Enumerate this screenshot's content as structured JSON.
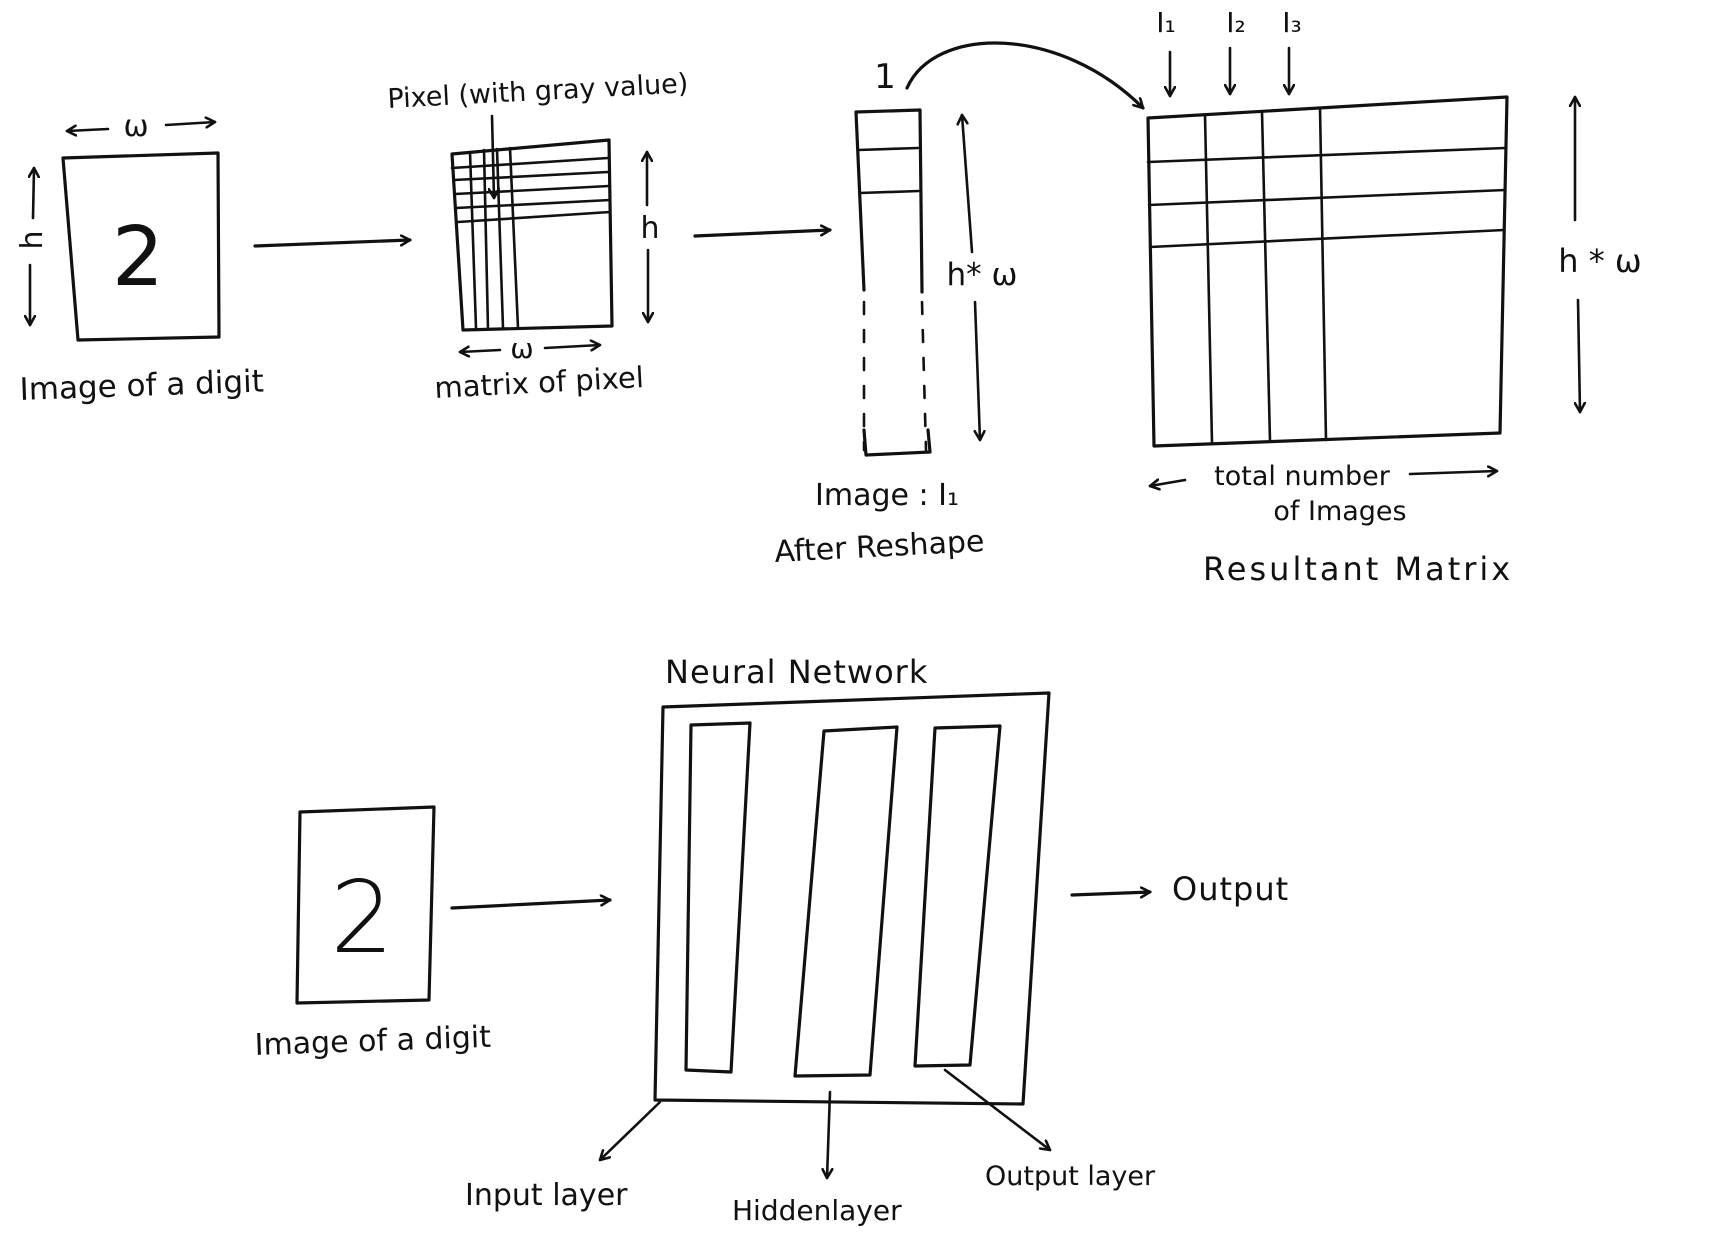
{
  "top": {
    "digit_image": {
      "digit": "2",
      "width_label": "ω",
      "height_label": "h",
      "caption": "Image of a digit"
    },
    "pixel_matrix": {
      "annotation": "Pixel (with gray value)",
      "width_label": "ω",
      "height_label": "h",
      "caption": "matrix of pixel"
    },
    "reshaped": {
      "index_label": "1",
      "size_label": "h* ω",
      "caption_line1": "Image : I₁",
      "caption_line2": "After Reshape"
    },
    "resultant": {
      "column_labels": [
        "I₁",
        "I₂",
        "I₃"
      ],
      "height_label": "h * ω",
      "width_label_line1": "total number",
      "width_label_line2": "of Images",
      "caption": "Resultant Matrix"
    }
  },
  "bottom": {
    "title": "Neural Network",
    "digit_image": {
      "digit": "2",
      "caption": "Image of a digit"
    },
    "output_label": "Output",
    "layer_labels": {
      "input": "Input layer",
      "hidden": "Hiddenlayer",
      "output": "Output layer"
    }
  }
}
